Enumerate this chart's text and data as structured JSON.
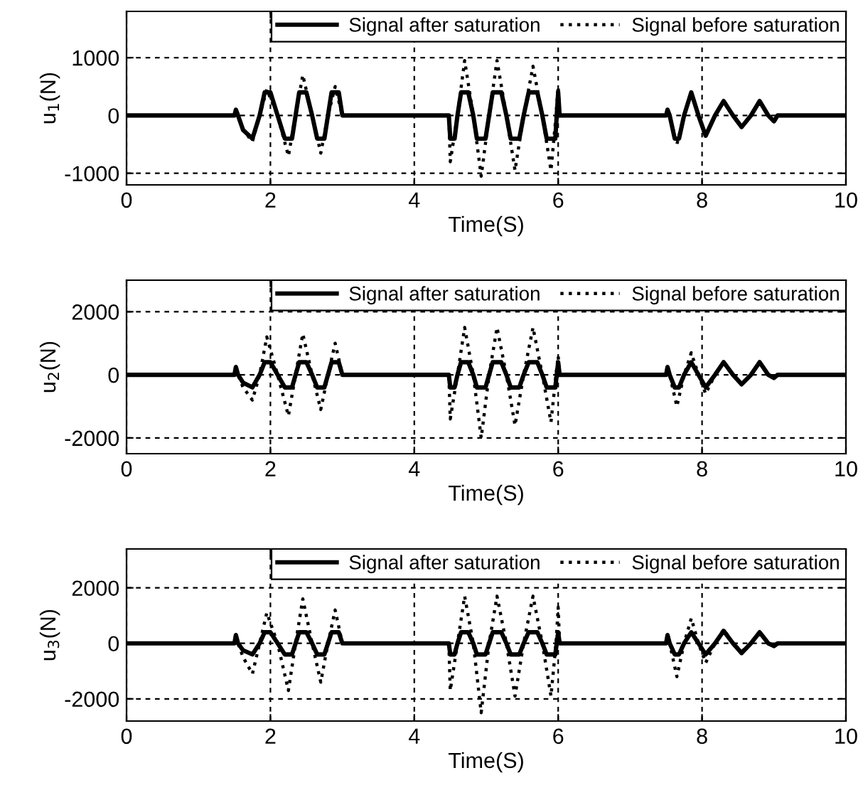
{
  "chart_data": [
    {
      "type": "line",
      "xlabel": "Time(S)",
      "ylabel": "u$_{1}$(N)",
      "xlim": [
        0,
        10
      ],
      "xticks": [
        0,
        2,
        4,
        6,
        8,
        10
      ],
      "ylim": [
        -1200,
        1800
      ],
      "yticks": [
        -1000,
        0,
        1000
      ],
      "grid": true,
      "legend": "top right",
      "marker": "none",
      "series": [
        {
          "name": "Signal after saturation",
          "color": "#000000",
          "line_style": "solid",
          "x": [
            0,
            1.5,
            1.52,
            1.55,
            1.62,
            1.75,
            1.85,
            1.92,
            2.0,
            2.1,
            2.2,
            2.3,
            2.35,
            2.4,
            2.5,
            2.58,
            2.65,
            2.75,
            2.8,
            2.85,
            2.95,
            3.0,
            4.48,
            4.5,
            4.56,
            4.6,
            4.65,
            4.75,
            4.82,
            4.87,
            4.99,
            5.04,
            5.09,
            5.21,
            5.28,
            5.34,
            5.46,
            5.52,
            5.59,
            5.71,
            5.78,
            5.84,
            5.96,
            5.98,
            6.0,
            6.02,
            7.5,
            7.52,
            7.55,
            7.62,
            7.68,
            7.75,
            7.85,
            7.95,
            8.05,
            8.18,
            8.3,
            8.43,
            8.55,
            8.68,
            8.8,
            8.92,
            9.0,
            9.05,
            10
          ],
          "values": [
            0,
            0,
            100,
            0,
            -250,
            -400,
            0,
            400,
            400,
            0,
            -400,
            -400,
            0,
            400,
            400,
            0,
            -400,
            -400,
            0,
            400,
            400,
            0,
            0,
            -400,
            -400,
            0,
            400,
            400,
            0,
            -400,
            -400,
            0,
            400,
            400,
            0,
            -400,
            -400,
            0,
            400,
            400,
            0,
            -400,
            -400,
            0,
            400,
            0,
            0,
            100,
            0,
            -400,
            -400,
            0,
            400,
            0,
            -350,
            0,
            250,
            0,
            -200,
            0,
            250,
            0,
            -100,
            0,
            0
          ]
        },
        {
          "name": "Signal before saturation",
          "color": "#000000",
          "line_style": "dotted",
          "x": [
            0,
            1.5,
            1.52,
            1.55,
            1.62,
            1.75,
            1.85,
            1.95,
            2.1,
            2.25,
            2.35,
            2.45,
            2.58,
            2.7,
            2.8,
            2.9,
            3.0,
            4.48,
            4.5,
            4.6,
            4.7,
            4.82,
            4.93,
            5.04,
            5.15,
            5.28,
            5.4,
            5.52,
            5.65,
            5.78,
            5.9,
            5.97,
            6.0,
            6.02,
            7.5,
            7.52,
            7.55,
            7.65,
            7.75,
            7.85,
            7.95,
            8.05,
            8.18,
            8.3,
            8.43,
            8.55,
            8.68,
            8.8,
            8.92,
            9.0,
            9.05,
            10
          ],
          "values": [
            0,
            0,
            100,
            0,
            -250,
            -450,
            0,
            450,
            0,
            -700,
            0,
            700,
            0,
            -650,
            0,
            500,
            0,
            0,
            -800,
            0,
            950,
            0,
            -1050,
            0,
            950,
            0,
            -950,
            0,
            850,
            0,
            -950,
            0,
            500,
            0,
            0,
            100,
            0,
            -500,
            0,
            400,
            0,
            -350,
            0,
            250,
            0,
            -200,
            0,
            250,
            0,
            -100,
            0,
            0
          ]
        }
      ]
    },
    {
      "type": "line",
      "xlabel": "Time(S)",
      "ylabel": "u$_{2}$(N)",
      "xlim": [
        0,
        10
      ],
      "xticks": [
        0,
        2,
        4,
        6,
        8,
        10
      ],
      "ylim": [
        -2500,
        3000
      ],
      "yticks": [
        -2000,
        0,
        2000
      ],
      "grid": true,
      "legend": "top right",
      "marker": "none",
      "series": [
        {
          "name": "Signal after saturation",
          "color": "#000000",
          "line_style": "solid",
          "x": [
            0,
            1.5,
            1.52,
            1.55,
            1.62,
            1.75,
            1.85,
            1.92,
            2.0,
            2.1,
            2.2,
            2.3,
            2.35,
            2.4,
            2.5,
            2.58,
            2.65,
            2.75,
            2.8,
            2.85,
            2.95,
            3.0,
            4.48,
            4.5,
            4.56,
            4.6,
            4.65,
            4.75,
            4.82,
            4.87,
            4.99,
            5.04,
            5.09,
            5.21,
            5.28,
            5.34,
            5.46,
            5.52,
            5.59,
            5.71,
            5.78,
            5.84,
            5.96,
            5.98,
            6.0,
            6.02,
            7.5,
            7.52,
            7.55,
            7.62,
            7.68,
            7.75,
            7.85,
            7.95,
            8.05,
            8.18,
            8.3,
            8.43,
            8.55,
            8.68,
            8.8,
            8.92,
            9.0,
            9.05,
            10
          ],
          "values": [
            0,
            0,
            250,
            0,
            -250,
            -400,
            0,
            400,
            400,
            0,
            -400,
            -400,
            0,
            400,
            400,
            0,
            -400,
            -400,
            0,
            400,
            400,
            0,
            0,
            -400,
            -400,
            0,
            400,
            400,
            0,
            -400,
            -400,
            0,
            400,
            400,
            0,
            -400,
            -400,
            0,
            400,
            400,
            0,
            -400,
            -400,
            0,
            400,
            0,
            0,
            250,
            0,
            -400,
            -400,
            0,
            400,
            0,
            -400,
            0,
            400,
            0,
            -300,
            0,
            400,
            0,
            -100,
            0,
            0
          ]
        },
        {
          "name": "Signal before saturation",
          "color": "#000000",
          "line_style": "dotted",
          "x": [
            0,
            1.5,
            1.52,
            1.55,
            1.62,
            1.75,
            1.85,
            1.95,
            2.1,
            2.25,
            2.35,
            2.45,
            2.58,
            2.7,
            2.8,
            2.9,
            3.0,
            4.48,
            4.5,
            4.6,
            4.7,
            4.82,
            4.93,
            5.04,
            5.15,
            5.28,
            5.4,
            5.52,
            5.65,
            5.78,
            5.9,
            5.97,
            6.0,
            6.02,
            7.5,
            7.52,
            7.55,
            7.65,
            7.75,
            7.85,
            7.95,
            8.05,
            8.18,
            8.3,
            8.43,
            8.55,
            8.68,
            8.8,
            8.92,
            9.0,
            9.05,
            10
          ],
          "values": [
            0,
            0,
            250,
            0,
            -400,
            -800,
            0,
            1200,
            0,
            -1300,
            0,
            1300,
            0,
            -1100,
            0,
            1000,
            0,
            0,
            -1400,
            0,
            1500,
            0,
            -2000,
            0,
            1500,
            0,
            -1600,
            0,
            1500,
            0,
            -1500,
            0,
            600,
            0,
            0,
            250,
            0,
            -1000,
            0,
            700,
            0,
            -600,
            0,
            400,
            0,
            -300,
            0,
            400,
            0,
            -100,
            0,
            0
          ]
        }
      ]
    },
    {
      "type": "line",
      "xlabel": "Time(S)",
      "ylabel": "u$_{3}$(N)",
      "xlim": [
        0,
        10
      ],
      "xticks": [
        0,
        2,
        4,
        6,
        8,
        10
      ],
      "ylim": [
        -2800,
        3400
      ],
      "yticks": [
        -2000,
        0,
        2000
      ],
      "grid": true,
      "legend": "top right",
      "marker": "none",
      "series": [
        {
          "name": "Signal after saturation",
          "color": "#000000",
          "line_style": "solid",
          "x": [
            0,
            1.5,
            1.52,
            1.55,
            1.62,
            1.75,
            1.85,
            1.92,
            2.0,
            2.1,
            2.2,
            2.3,
            2.35,
            2.4,
            2.5,
            2.58,
            2.65,
            2.75,
            2.8,
            2.85,
            2.95,
            3.0,
            4.48,
            4.5,
            4.56,
            4.6,
            4.65,
            4.75,
            4.82,
            4.87,
            4.99,
            5.04,
            5.09,
            5.21,
            5.28,
            5.34,
            5.46,
            5.52,
            5.59,
            5.71,
            5.78,
            5.84,
            5.96,
            5.98,
            6.0,
            6.02,
            7.5,
            7.52,
            7.55,
            7.62,
            7.68,
            7.75,
            7.85,
            7.95,
            8.05,
            8.18,
            8.3,
            8.43,
            8.55,
            8.68,
            8.8,
            8.92,
            9.0,
            9.05,
            10
          ],
          "values": [
            0,
            0,
            300,
            0,
            -250,
            -400,
            0,
            400,
            400,
            0,
            -400,
            -400,
            0,
            400,
            400,
            0,
            -400,
            -400,
            0,
            400,
            400,
            0,
            0,
            -400,
            -400,
            0,
            400,
            400,
            0,
            -400,
            -400,
            0,
            400,
            400,
            0,
            -400,
            -400,
            0,
            400,
            400,
            0,
            -400,
            -400,
            0,
            400,
            0,
            0,
            300,
            0,
            -400,
            -400,
            0,
            400,
            0,
            -400,
            0,
            450,
            0,
            -350,
            0,
            400,
            0,
            -100,
            0,
            0
          ]
        },
        {
          "name": "Signal before saturation",
          "color": "#000000",
          "line_style": "dotted",
          "x": [
            0,
            1.5,
            1.52,
            1.55,
            1.62,
            1.75,
            1.85,
            1.95,
            2.1,
            2.25,
            2.35,
            2.45,
            2.58,
            2.7,
            2.8,
            2.9,
            3.0,
            4.48,
            4.5,
            4.6,
            4.7,
            4.82,
            4.93,
            5.04,
            5.15,
            5.28,
            5.4,
            5.52,
            5.65,
            5.78,
            5.9,
            5.97,
            6.0,
            6.02,
            7.5,
            7.52,
            7.55,
            7.65,
            7.75,
            7.85,
            7.95,
            8.05,
            8.18,
            8.3,
            8.43,
            8.55,
            8.68,
            8.8,
            8.92,
            9.0,
            9.05,
            10
          ],
          "values": [
            0,
            0,
            300,
            0,
            -500,
            -1100,
            0,
            1100,
            0,
            -1700,
            0,
            1600,
            0,
            -1400,
            0,
            1200,
            0,
            0,
            -1700,
            0,
            1700,
            0,
            -2500,
            0,
            1700,
            0,
            -1900,
            0,
            1700,
            0,
            -1900,
            0,
            1300,
            0,
            0,
            300,
            0,
            -1200,
            0,
            900,
            0,
            -700,
            0,
            500,
            0,
            -300,
            0,
            400,
            0,
            -100,
            0,
            0
          ]
        }
      ]
    }
  ]
}
